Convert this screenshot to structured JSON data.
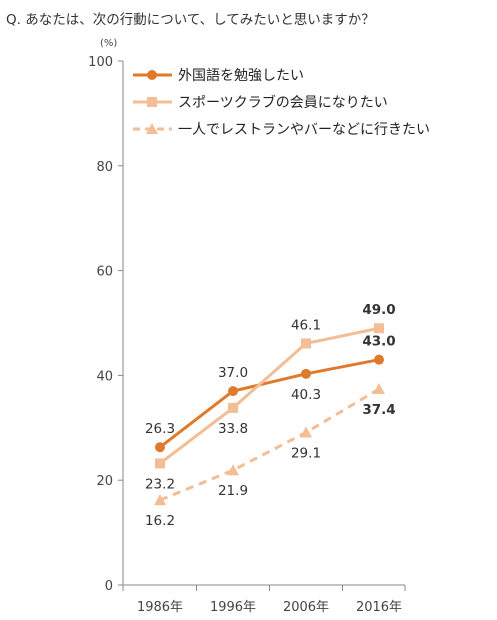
{
  "question": "Q. あなたは、次の行動について、してみたいと思いますか？",
  "chart_data": {
    "type": "line",
    "unit_label": "(%)",
    "categories": [
      "1986年",
      "1996年",
      "2006年",
      "2016年"
    ],
    "ylim": [
      0,
      100
    ],
    "yticks": [
      "0",
      "20",
      "40",
      "60",
      "80",
      "100"
    ],
    "legend_position": "top-right",
    "grid": false,
    "series": [
      {
        "name": "外国語を勉強したい",
        "values": [
          26.3,
          37.0,
          40.3,
          43.0
        ],
        "labels": [
          "26.3",
          "37.0",
          "40.3",
          "43.0"
        ],
        "color": "#e07a2b",
        "marker": "circle",
        "dash": "solid"
      },
      {
        "name": "スポーツクラブの会員になりたい",
        "values": [
          23.2,
          33.8,
          46.1,
          49.0
        ],
        "labels": [
          "23.2",
          "33.8",
          "46.1",
          "49.0"
        ],
        "color": "#f3bd95",
        "marker": "square",
        "dash": "solid"
      },
      {
        "name": "一人でレストランやバーなどに行きたい",
        "values": [
          16.2,
          21.9,
          29.1,
          37.4
        ],
        "labels": [
          "16.2",
          "21.9",
          "29.1",
          "37.4"
        ],
        "color": "#f3bd95",
        "marker": "triangle",
        "dash": "dashed"
      }
    ]
  }
}
